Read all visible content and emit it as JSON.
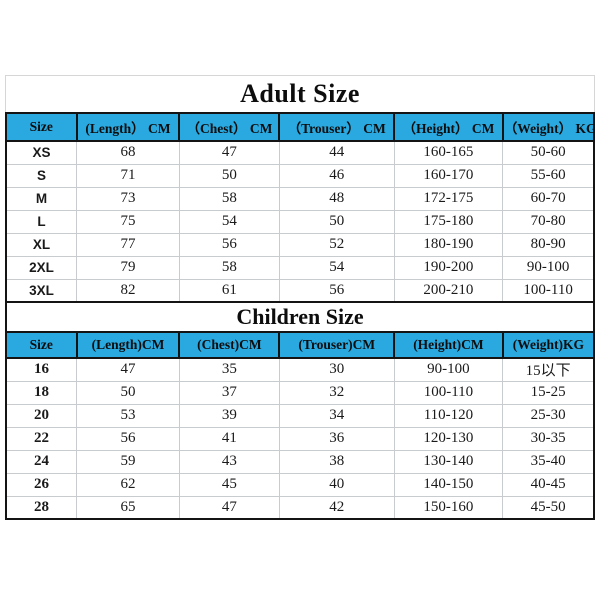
{
  "colors": {
    "header_bg": "#29a9e0",
    "border_dark": "#141414",
    "grid_line": "#c8ccce",
    "text": "#1a1a1a",
    "background": "#ffffff"
  },
  "adult": {
    "title": "Adult Size",
    "headers": [
      "Size",
      "(Length） CM",
      "（Chest） CM",
      "（Trouser） CM",
      "（Height） CM",
      "（Weight） KG"
    ],
    "rows": [
      [
        "XS",
        "68",
        "47",
        "44",
        "160-165",
        "50-60"
      ],
      [
        "S",
        "71",
        "50",
        "46",
        "160-170",
        "55-60"
      ],
      [
        "M",
        "73",
        "58",
        "48",
        "172-175",
        "60-70"
      ],
      [
        "L",
        "75",
        "54",
        "50",
        "175-180",
        "70-80"
      ],
      [
        "XL",
        "77",
        "56",
        "52",
        "180-190",
        "80-90"
      ],
      [
        "2XL",
        "79",
        "58",
        "54",
        "190-200",
        "90-100"
      ],
      [
        "3XL",
        "82",
        "61",
        "56",
        "200-210",
        "100-110"
      ]
    ]
  },
  "children": {
    "title": "Children Size",
    "headers": [
      "Size",
      "(Length)CM",
      "(Chest)CM",
      "(Trouser)CM",
      "(Height)CM",
      "(Weight)KG"
    ],
    "rows": [
      [
        "16",
        "47",
        "35",
        "30",
        "90-100",
        "15以下"
      ],
      [
        "18",
        "50",
        "37",
        "32",
        "100-110",
        "15-25"
      ],
      [
        "20",
        "53",
        "39",
        "34",
        "110-120",
        "25-30"
      ],
      [
        "22",
        "56",
        "41",
        "36",
        "120-130",
        "30-35"
      ],
      [
        "24",
        "59",
        "43",
        "38",
        "130-140",
        "35-40"
      ],
      [
        "26",
        "62",
        "45",
        "40",
        "140-150",
        "40-45"
      ],
      [
        "28",
        "65",
        "47",
        "42",
        "150-160",
        "45-50"
      ]
    ]
  }
}
